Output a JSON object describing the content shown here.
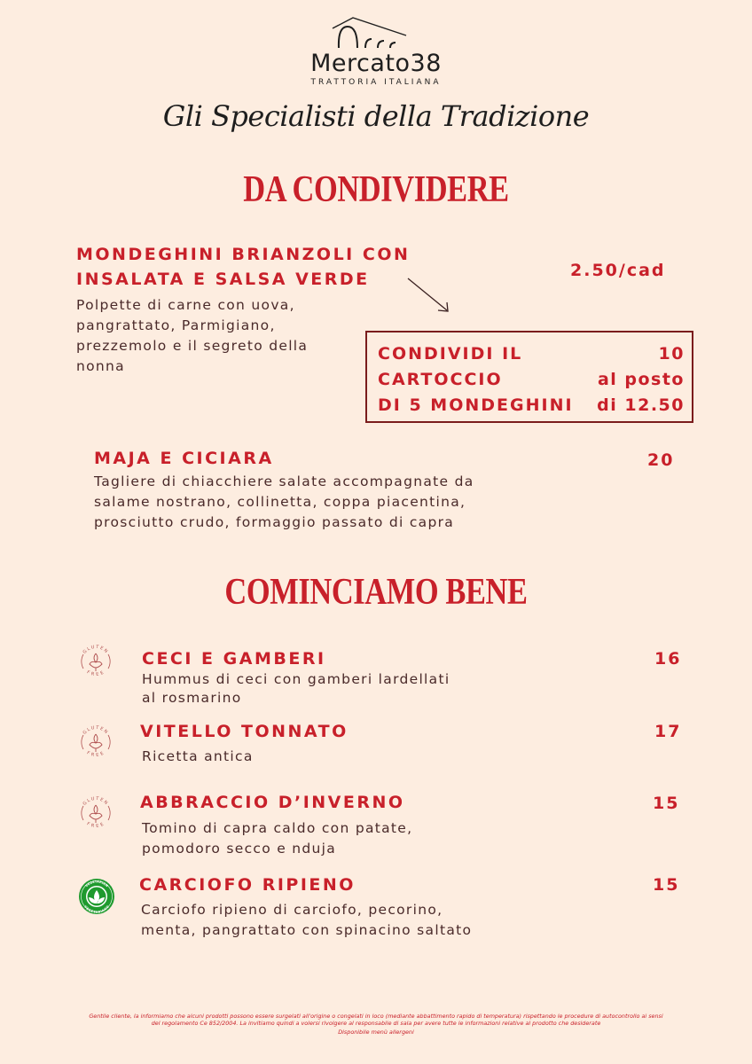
{
  "header": {
    "logo_name": "Mercato38",
    "logo_subtitle": "TRATTORIA ITALIANA",
    "tagline": "Gli Specialisti della Tradizione"
  },
  "sections": [
    {
      "title": "DA CONDIVIDERE",
      "items": [
        {
          "title": "MONDEGHINI BRIANZOLI CON INSALATA E SALSA VERDE",
          "title_line1": "MONDEGHINI BRIANZOLI CON",
          "title_line2": "INSALATA E SALSA VERDE",
          "price": "2.50/cad",
          "desc_lines": [
            "Polpette di carne con uova,",
            "pangrattato, Parmigiano,",
            "prezzemolo e il segreto della",
            "nonna"
          ],
          "promo": {
            "left_lines": [
              "CONDIVIDI IL",
              "CARTOCCIO",
              "DI 5 MONDEGHINI"
            ],
            "right_lines": [
              "10",
              "al posto",
              "di 12.50"
            ]
          }
        },
        {
          "title": "MAJA E CICIARA",
          "price": "20",
          "desc_lines": [
            "Tagliere di chiacchiere salate accompagnate da",
            "salame nostrano, collinetta, coppa piacentina,",
            "prosciutto crudo, formaggio passato di capra"
          ]
        }
      ]
    },
    {
      "title": "COMINCIAMO BENE",
      "items": [
        {
          "title": "CECI E GAMBERI",
          "price": "16",
          "badge": "gluten-free",
          "desc_lines": [
            "Hummus di ceci con gamberi lardellati",
            "al rosmarino"
          ]
        },
        {
          "title": "VITELLO TONNATO",
          "price": "17",
          "badge": "gluten-free",
          "desc_lines": [
            "Ricetta antica"
          ]
        },
        {
          "title": "ABBRACCIO D’INVERNO",
          "price": "15",
          "badge": "gluten-free",
          "desc_lines": [
            "Tomino di capra caldo con patate,",
            "pomodoro secco e nduja"
          ]
        },
        {
          "title": "CARCIOFO RIPIENO",
          "price": "15",
          "badge": "vegetarian",
          "desc_lines": [
            "Carciofo ripieno di carciofo, pecorino,",
            "menta, pangrattato con spinacino saltato"
          ]
        }
      ]
    }
  ],
  "badges": {
    "gluten_top": "GLUTEN",
    "gluten_bottom": "FREE",
    "veg_top": "VEGETARIAN",
    "veg_bottom": "VEGETARIANO"
  },
  "footer": {
    "notice": "Gentile cliente, la informiamo che alcuni prodotti possono essere surgelati all'origine o congelati in loco (mediante abbattimento rapido di temperatura) rispettando le procedure di autocontrollo ai sensi del regolamento Ce 852/2004. La invitiamo quindi a volersi rivolgere al responsabile di sala per avere tutte le informazioni relative al prodotto che desiderate",
    "allergens": "Disponibile menù allergeni"
  },
  "colors": {
    "background": "#fdede0",
    "accent": "#c8202a",
    "box_border": "#7a1c1c",
    "vegetarian": "#1f9a2e"
  }
}
